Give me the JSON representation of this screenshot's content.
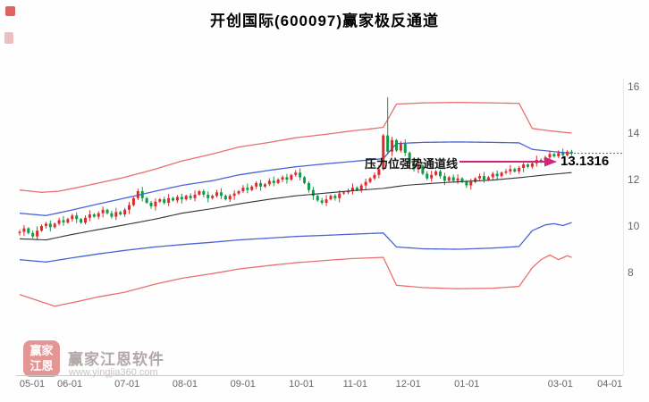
{
  "page": {
    "title": "开创国际(600097)赢家极反通道"
  },
  "annotation": {
    "label": "压力位强势通道线",
    "value": "13.1316",
    "arrow_color": "#d4237a"
  },
  "watermark": {
    "logo_line1": "赢家",
    "logo_line2": "江恩",
    "name": "赢家江恩软件",
    "url": "www.yingjia360.com"
  },
  "chart_data": {
    "type": "candlestick",
    "title": "开创国际(600097)赢家极反通道",
    "stock_name": "开创国际",
    "stock_code": "600097",
    "ylim": [
      6,
      17.8
    ],
    "y_ticks": [
      16,
      14,
      12,
      10,
      8
    ],
    "x_ticks": [
      {
        "label": "05-01",
        "f": 0.0
      },
      {
        "label": "06-01",
        "f": 0.083
      },
      {
        "label": "07-01",
        "f": 0.178
      },
      {
        "label": "08-01",
        "f": 0.274
      },
      {
        "label": "09-01",
        "f": 0.37
      },
      {
        "label": "10-01",
        "f": 0.467
      },
      {
        "label": "11-01",
        "f": 0.556
      },
      {
        "label": "12-01",
        "f": 0.644
      },
      {
        "label": "01-01",
        "f": 0.741
      },
      {
        "label": "03-01",
        "f": 0.896
      },
      {
        "label": "04-01",
        "f": 0.978
      }
    ],
    "first_open": 9.7,
    "closes": [
      9.75,
      9.9,
      9.7,
      9.55,
      9.8,
      10,
      10.1,
      9.95,
      10.1,
      10.25,
      10.15,
      10.3,
      10.45,
      10.3,
      10.15,
      10.35,
      10.5,
      10.4,
      10.55,
      10.7,
      10.55,
      10.4,
      10.6,
      10.5,
      10.7,
      10.9,
      11.2,
      11.5,
      11.2,
      11,
      10.85,
      11.05,
      11.15,
      11,
      11.2,
      11.1,
      11.25,
      11.15,
      11.3,
      11.2,
      11.35,
      11.5,
      11.35,
      11.2,
      11.3,
      11.45,
      11.3,
      11.15,
      11.3,
      11.4,
      11.5,
      11.65,
      11.55,
      11.7,
      11.85,
      11.7,
      11.8,
      11.95,
      11.85,
      12,
      12.1,
      12,
      12.2,
      12.3,
      12.1,
      11.85,
      11.55,
      11.3,
      11.1,
      11,
      11.15,
      11.3,
      11.2,
      11.4,
      11.45,
      11.5,
      11.65,
      11.55,
      11.75,
      11.9,
      12.05,
      12.2,
      12.45,
      13.9,
      13.2,
      13.7,
      13.25,
      13.55,
      13.15,
      12.7,
      12.45,
      12.6,
      12.25,
      12.05,
      12.2,
      12.35,
      12.15,
      11.95,
      12.1,
      11.95,
      12.05,
      11.9,
      11.75,
      11.9,
      12.05,
      12.15,
      12,
      12.1,
      12.25,
      12.15,
      12.3,
      12.35,
      12.45,
      12.35,
      12.5,
      12.65,
      12.55,
      12.7,
      12.85,
      12.75,
      12.95,
      13.1,
      13,
      13.15,
      13.05,
      13.2,
      13.13
    ],
    "wick_pattern": [
      0.08,
      0.14,
      0.05,
      0.11,
      0.18,
      0.06
    ],
    "spike": {
      "index": 84,
      "high": 15.55
    },
    "pressure_line": 13.1316,
    "series": {
      "upper_red": [
        [
          0,
          11.55
        ],
        [
          5,
          11.45
        ],
        [
          9,
          11.5
        ],
        [
          13,
          11.65
        ],
        [
          18,
          11.85
        ],
        [
          24,
          12.1
        ],
        [
          31,
          12.45
        ],
        [
          37,
          12.8
        ],
        [
          44,
          13.1
        ],
        [
          50,
          13.4
        ],
        [
          57,
          13.6
        ],
        [
          63,
          13.8
        ],
        [
          70,
          13.95
        ],
        [
          76,
          14.1
        ],
        [
          80,
          14.18
        ],
        [
          83,
          14.25
        ],
        [
          86,
          15.25
        ],
        [
          92,
          15.3
        ],
        [
          100,
          15.32
        ],
        [
          108,
          15.3
        ],
        [
          114,
          15.28
        ],
        [
          117,
          14.2
        ],
        [
          121,
          14.1
        ],
        [
          126,
          14.0
        ]
      ],
      "upper_blue": [
        [
          0,
          10.55
        ],
        [
          6,
          10.45
        ],
        [
          11,
          10.65
        ],
        [
          18,
          10.95
        ],
        [
          24,
          11.2
        ],
        [
          31,
          11.5
        ],
        [
          37,
          11.75
        ],
        [
          44,
          11.95
        ],
        [
          50,
          12.2
        ],
        [
          57,
          12.4
        ],
        [
          63,
          12.55
        ],
        [
          70,
          12.68
        ],
        [
          76,
          12.78
        ],
        [
          83,
          12.9
        ],
        [
          86,
          13.55
        ],
        [
          92,
          13.6
        ],
        [
          100,
          13.62
        ],
        [
          108,
          13.6
        ],
        [
          114,
          13.58
        ],
        [
          117,
          13.3
        ],
        [
          121,
          13.22
        ],
        [
          126,
          13.13
        ]
      ],
      "mid_black": [
        [
          0,
          9.45
        ],
        [
          6,
          9.4
        ],
        [
          11,
          9.6
        ],
        [
          18,
          9.85
        ],
        [
          24,
          10.05
        ],
        [
          31,
          10.3
        ],
        [
          37,
          10.55
        ],
        [
          44,
          10.75
        ],
        [
          50,
          10.95
        ],
        [
          57,
          11.15
        ],
        [
          63,
          11.3
        ],
        [
          70,
          11.42
        ],
        [
          76,
          11.52
        ],
        [
          83,
          11.62
        ],
        [
          88,
          11.75
        ],
        [
          95,
          11.85
        ],
        [
          102,
          11.92
        ],
        [
          108,
          11.98
        ],
        [
          114,
          12.08
        ],
        [
          120,
          12.2
        ],
        [
          126,
          12.3
        ]
      ],
      "lower_blue": [
        [
          0,
          8.55
        ],
        [
          6,
          8.45
        ],
        [
          11,
          8.6
        ],
        [
          18,
          8.8
        ],
        [
          24,
          8.95
        ],
        [
          31,
          9.1
        ],
        [
          37,
          9.2
        ],
        [
          44,
          9.3
        ],
        [
          50,
          9.4
        ],
        [
          57,
          9.48
        ],
        [
          63,
          9.55
        ],
        [
          70,
          9.6
        ],
        [
          76,
          9.65
        ],
        [
          83,
          9.7
        ],
        [
          86,
          9.1
        ],
        [
          92,
          9.02
        ],
        [
          100,
          9.0
        ],
        [
          108,
          9.05
        ],
        [
          114,
          9.12
        ],
        [
          117,
          9.8
        ],
        [
          120,
          10.05
        ],
        [
          122,
          10.1
        ],
        [
          124,
          10.02
        ],
        [
          126,
          10.15
        ]
      ],
      "lower_red": [
        [
          0,
          7.05
        ],
        [
          4,
          6.8
        ],
        [
          8,
          6.55
        ],
        [
          12,
          6.7
        ],
        [
          18,
          6.95
        ],
        [
          24,
          7.15
        ],
        [
          31,
          7.5
        ],
        [
          37,
          7.75
        ],
        [
          44,
          7.95
        ],
        [
          50,
          8.15
        ],
        [
          57,
          8.3
        ],
        [
          63,
          8.42
        ],
        [
          70,
          8.52
        ],
        [
          76,
          8.6
        ],
        [
          83,
          8.65
        ],
        [
          86,
          7.45
        ],
        [
          92,
          7.35
        ],
        [
          100,
          7.3
        ],
        [
          108,
          7.32
        ],
        [
          114,
          7.4
        ],
        [
          117,
          8.2
        ],
        [
          119,
          8.55
        ],
        [
          121,
          8.75
        ],
        [
          123,
          8.55
        ],
        [
          125,
          8.72
        ],
        [
          126,
          8.65
        ]
      ]
    },
    "colors": {
      "up": "#dd2b2b",
      "down": "#0c9b48",
      "outer_band": "#e87070",
      "inner_band": "#4a63d8",
      "midline": "#333333",
      "target_line": "#22a24c",
      "axis": "#c9c9c9",
      "tick_text": "#666666"
    },
    "legend": "none",
    "grid": "off"
  }
}
